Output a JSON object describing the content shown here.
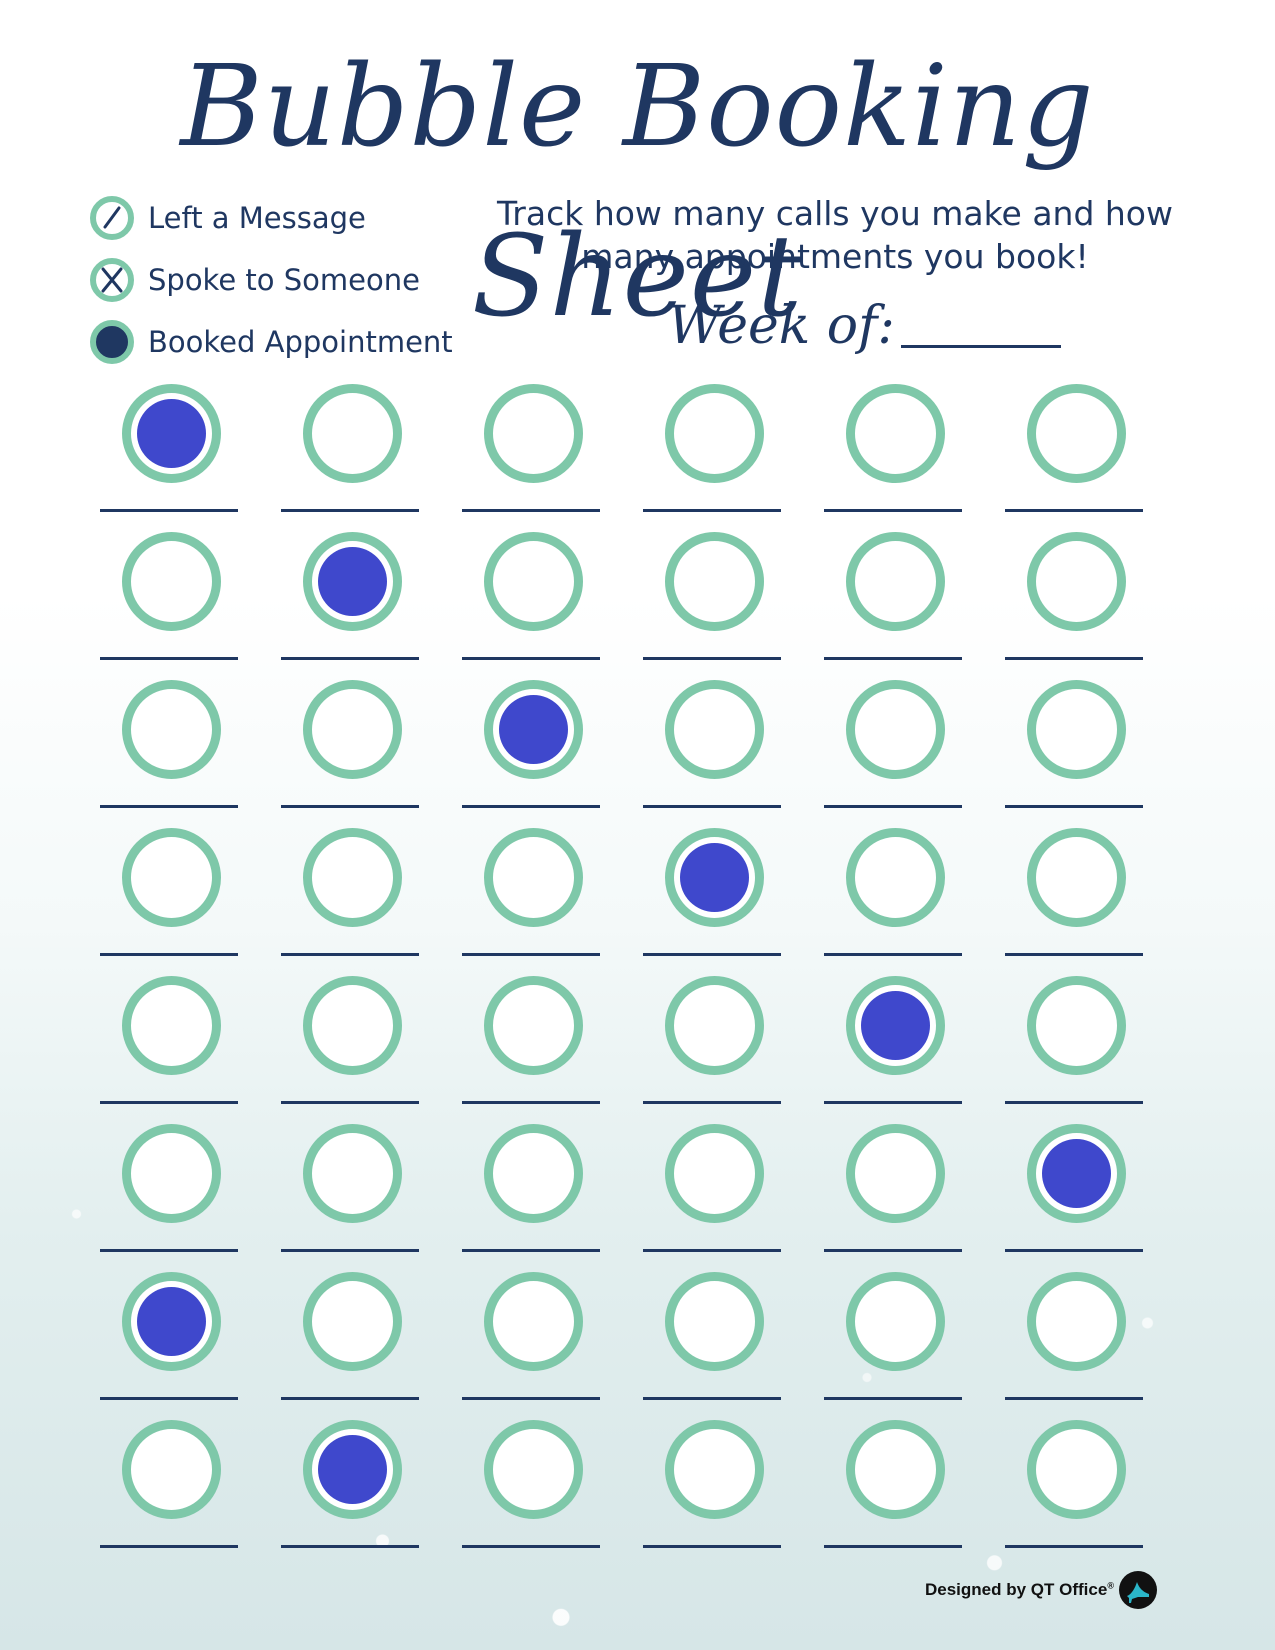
{
  "title": "Bubble Booking Sheet",
  "legend": [
    {
      "icon": "slash-circle-icon",
      "label": "Left a Message"
    },
    {
      "icon": "x-circle-icon",
      "label": "Spoke to Someone"
    },
    {
      "icon": "filled-circle-icon",
      "label": "Booked Appointment"
    }
  ],
  "tagline": "Track how many calls you make and how many appointments you book!",
  "week_label": "Week of:",
  "colors": {
    "navy": "#1f3761",
    "mint": "#7ec8a9",
    "booked_fill": "#3f48cc"
  },
  "grid": {
    "rows": [
      [
        "booked",
        "empty",
        "empty",
        "empty",
        "empty",
        "empty"
      ],
      [
        "empty",
        "booked",
        "empty",
        "empty",
        "empty",
        "empty"
      ],
      [
        "empty",
        "empty",
        "booked",
        "empty",
        "empty",
        "empty"
      ],
      [
        "empty",
        "empty",
        "empty",
        "booked",
        "empty",
        "empty"
      ],
      [
        "empty",
        "empty",
        "empty",
        "empty",
        "booked",
        "empty"
      ],
      [
        "empty",
        "empty",
        "empty",
        "empty",
        "empty",
        "booked"
      ],
      [
        "booked",
        "empty",
        "empty",
        "empty",
        "empty",
        "empty"
      ],
      [
        "empty",
        "booked",
        "empty",
        "empty",
        "empty",
        "empty"
      ]
    ]
  },
  "footer": {
    "text": "Designed by QT Office",
    "registered": "®",
    "logo_icon": "high-heel-logo-icon"
  }
}
